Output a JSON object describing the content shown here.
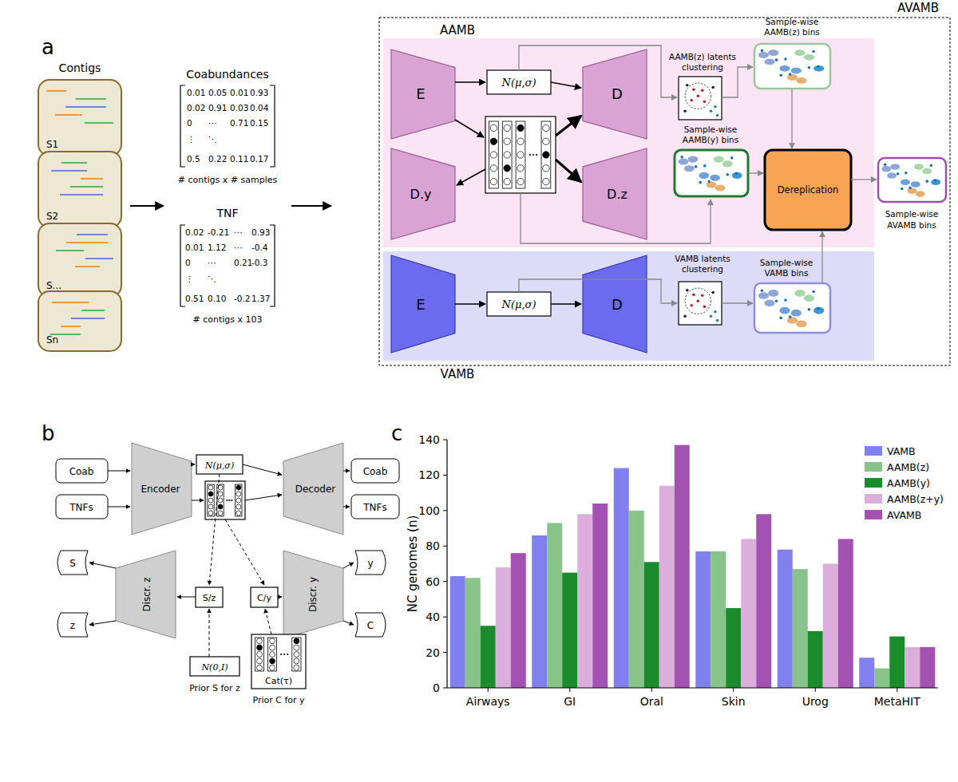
{
  "panel_a": {
    "label": "a",
    "contigs_title": "Contigs",
    "samples": [
      "S1",
      "S2",
      "S...",
      "Sn"
    ],
    "coabundances": {
      "title": "Coabundances",
      "rows": [
        [
          "0.01",
          "0.05",
          "0.01",
          "0.93"
        ],
        [
          "0.02",
          "0.91",
          "0.03",
          "0.04"
        ],
        [
          "0",
          "⋯",
          "0.71",
          "0.15"
        ],
        [
          "⋮",
          "⋱"
        ],
        [
          "0.5",
          "0.22",
          "0.11",
          "0.17"
        ]
      ],
      "caption": "# contigs x # samples"
    },
    "tnf": {
      "title": "TNF",
      "rows": [
        [
          "0.02",
          "-0.21",
          "⋯",
          "0.93"
        ],
        [
          "0.01",
          "1.12",
          "⋯",
          "-0.4"
        ],
        [
          "0",
          "⋯",
          "0.21",
          "-0.3"
        ],
        [
          "⋮",
          "⋱"
        ],
        [
          "0.51",
          "0.10",
          "-0.2",
          "1.37"
        ]
      ],
      "caption": "# contigs x 103"
    },
    "avamb": {
      "title": "AVAMB",
      "aamb_title": "AAMB",
      "vamb_title": "VAMB",
      "modules": {
        "aamb_encoder": "E",
        "aamb_decoder_y": "D.y",
        "aamb_latent": "N(μ,σ)",
        "aamb_decoder": "D",
        "aamb_decoder_z": "D.z",
        "aamb_z_clustering": [
          "AAMB(z) latents",
          "clustering"
        ],
        "aamb_z_bins": [
          "Sample-wise",
          "AAMB(z) bins"
        ],
        "aamb_y_bins": [
          "Sample-wise",
          "AAMB(y) bins"
        ],
        "dereplication": "Dereplication",
        "avamb_bins": [
          "Sample-wise",
          "AVAMB bins"
        ],
        "vamb_encoder": "E",
        "vamb_latent": "N(μ,σ)",
        "vamb_decoder": "D",
        "vamb_clustering": [
          "VAMB latents",
          "clustering"
        ],
        "vamb_bins": [
          "Sample-wise",
          "VAMB bins"
        ]
      }
    }
  },
  "panel_b": {
    "label": "b",
    "inputs": [
      "Coab",
      "TNFs"
    ],
    "encoder": "Encoder",
    "latent": "N(μ,σ)",
    "decoder": "Decoder",
    "outputs": [
      "Coab",
      "TNFs"
    ],
    "discr_z": "Discr. z",
    "discr_z_outputs": [
      "S",
      "z"
    ],
    "sz": "S/z",
    "prior_z": "N(0,I)",
    "prior_z_caption": "Prior S for z",
    "discr_y": "Discr. y",
    "discr_y_outputs": [
      "y",
      "C"
    ],
    "cy": "C/y",
    "prior_y": "Cat(τ)",
    "prior_y_caption": "Prior C for y"
  },
  "chart_data": {
    "type": "bar",
    "panel_label": "c",
    "y_label": "NC genomes (n)",
    "categories": [
      "Airways",
      "GI",
      "Oral",
      "Skin",
      "Urog",
      "MetaHIT"
    ],
    "series": [
      {
        "name": "VAMB",
        "color": "#8080ee",
        "values": [
          63,
          86,
          124,
          77,
          78,
          17
        ]
      },
      {
        "name": "AAMB(z)",
        "color": "#88c48a",
        "values": [
          62,
          93,
          100,
          77,
          67,
          11
        ]
      },
      {
        "name": "AAMB(y)",
        "color": "#1b8c2c",
        "values": [
          35,
          65,
          71,
          45,
          32,
          29
        ]
      },
      {
        "name": "AAMB(z+y)",
        "color": "#dcaedc",
        "values": [
          68,
          98,
          114,
          84,
          70,
          23
        ]
      },
      {
        "name": "AVAMB",
        "color": "#a452b2",
        "values": [
          76,
          104,
          137,
          98,
          84,
          23
        ]
      }
    ],
    "ylim": [
      0,
      140
    ],
    "yticks": [
      0,
      20,
      40,
      60,
      80,
      100,
      120,
      140
    ],
    "grid": false,
    "legend": "upper right"
  }
}
